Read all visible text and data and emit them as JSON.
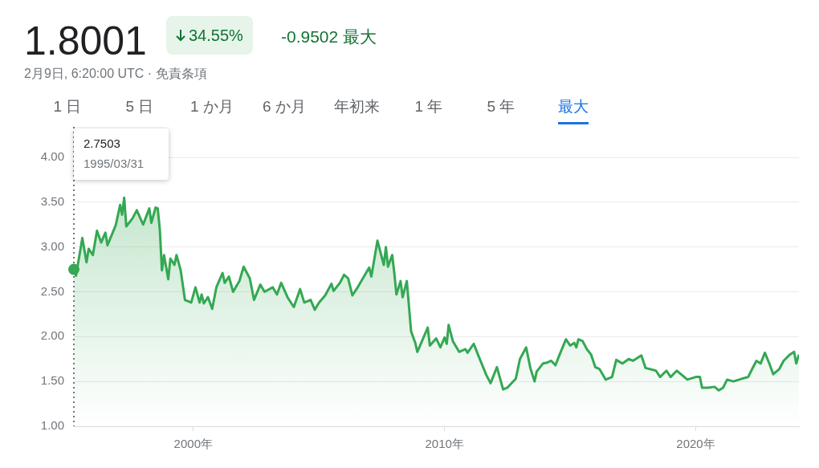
{
  "chart_data": {
    "type": "area",
    "title": "1.8001",
    "subtitle": "2月9日, 6:20:00 UTC · 免責条項",
    "x": [
      "1995-03-31",
      "1995-05",
      "1995-08",
      "1995-10",
      "1995-11",
      "1996-01",
      "1996-03",
      "1996-05",
      "1996-07",
      "1996-08",
      "1996-11",
      "1996-12",
      "1997-02",
      "1997-03",
      "1997-04",
      "1997-05",
      "1997-08",
      "1997-10",
      "1998-01",
      "1998-04",
      "1998-05",
      "1998-07",
      "1998-08",
      "1998-09",
      "1998-10",
      "1998-11",
      "1999-01",
      "1999-02",
      "1999-04",
      "1999-05",
      "1999-07",
      "1999-09",
      "1999-12",
      "2000-02",
      "2000-04",
      "2000-05",
      "2000-06",
      "2000-08",
      "2000-10",
      "2000-12",
      "2001-03",
      "2001-04",
      "2001-06",
      "2001-08",
      "2001-11",
      "2002-01",
      "2002-04",
      "2002-06",
      "2002-09",
      "2002-11",
      "2003-03",
      "2003-05",
      "2003-07",
      "2003-10",
      "2004-01",
      "2004-04",
      "2004-06",
      "2004-09",
      "2004-11",
      "2005-01",
      "2005-04",
      "2005-07",
      "2005-08",
      "2005-11",
      "2006-01",
      "2006-03",
      "2006-05",
      "2006-07",
      "2006-10",
      "2007-01",
      "2007-02",
      "2007-05",
      "2007-08",
      "2007-09",
      "2007-10",
      "2007-12",
      "2008-01",
      "2008-02",
      "2008-04",
      "2008-05",
      "2008-07",
      "2008-09",
      "2008-11",
      "2008-12",
      "2009-03",
      "2009-05",
      "2009-06",
      "2009-09",
      "2009-11",
      "2010-01",
      "2010-02",
      "2010-03",
      "2010-05",
      "2010-08",
      "2010-11",
      "2010-12",
      "2011-03",
      "2011-05",
      "2011-09",
      "2011-11",
      "2012-02",
      "2012-05",
      "2012-07",
      "2012-11",
      "2013-01",
      "2013-04",
      "2013-06",
      "2013-08",
      "2013-09",
      "2013-12",
      "2014-02",
      "2014-04",
      "2014-06",
      "2014-08",
      "2014-11",
      "2015-01",
      "2015-03",
      "2015-04",
      "2015-05",
      "2015-07",
      "2015-09",
      "2015-11",
      "2016-01",
      "2016-03",
      "2016-06",
      "2016-09",
      "2016-11",
      "2017-02",
      "2017-05",
      "2017-07",
      "2017-11",
      "2018-01",
      "2018-06",
      "2018-08",
      "2018-11",
      "2019-01",
      "2019-04",
      "2019-07",
      "2019-09",
      "2020-01",
      "2020-03",
      "2020-04",
      "2020-07",
      "2020-10",
      "2020-12",
      "2021-02",
      "2021-04",
      "2021-07",
      "2021-11",
      "2022-02",
      "2022-04",
      "2022-06",
      "2022-08",
      "2022-10",
      "2022-12",
      "2023-02",
      "2023-05",
      "2023-07",
      "2023-10",
      "2023-12",
      "2024-01",
      "2024-02-09"
    ],
    "values": [
      2.75,
      2.68,
      3.1,
      2.83,
      2.98,
      2.91,
      3.18,
      3.05,
      3.16,
      3.02,
      3.19,
      3.25,
      3.47,
      3.36,
      3.55,
      3.23,
      3.32,
      3.41,
      3.25,
      3.43,
      3.27,
      3.44,
      3.43,
      3.19,
      2.74,
      2.91,
      2.64,
      2.87,
      2.8,
      2.91,
      2.74,
      2.41,
      2.38,
      2.55,
      2.38,
      2.47,
      2.37,
      2.44,
      2.31,
      2.55,
      2.71,
      2.6,
      2.67,
      2.5,
      2.62,
      2.78,
      2.65,
      2.41,
      2.58,
      2.5,
      2.55,
      2.47,
      2.6,
      2.44,
      2.33,
      2.53,
      2.38,
      2.41,
      2.3,
      2.38,
      2.46,
      2.59,
      2.51,
      2.6,
      2.69,
      2.65,
      2.46,
      2.53,
      2.65,
      2.77,
      2.67,
      3.07,
      2.8,
      3.0,
      2.78,
      2.91,
      2.71,
      2.47,
      2.62,
      2.44,
      2.62,
      2.06,
      1.93,
      1.83,
      1.99,
      2.1,
      1.9,
      1.98,
      1.88,
      1.99,
      1.92,
      2.13,
      1.95,
      1.83,
      1.86,
      1.82,
      1.92,
      1.8,
      1.57,
      1.48,
      1.66,
      1.41,
      1.43,
      1.53,
      1.75,
      1.88,
      1.65,
      1.5,
      1.61,
      1.7,
      1.71,
      1.73,
      1.68,
      1.8,
      1.97,
      1.9,
      1.93,
      1.88,
      1.97,
      1.95,
      1.86,
      1.8,
      1.66,
      1.64,
      1.52,
      1.55,
      1.74,
      1.7,
      1.75,
      1.73,
      1.79,
      1.65,
      1.62,
      1.55,
      1.62,
      1.55,
      1.62,
      1.56,
      1.52,
      1.55,
      1.55,
      1.43,
      1.43,
      1.44,
      1.4,
      1.43,
      1.52,
      1.5,
      1.53,
      1.55,
      1.64,
      1.73,
      1.7,
      1.82,
      1.71,
      1.58,
      1.64,
      1.73,
      1.8,
      1.83,
      1.7,
      1.8
    ],
    "color": "#34a853",
    "xlim": [
      "1995-03-31",
      "2024-02-09"
    ],
    "xticks": [
      {
        "value": "2000",
        "label": "2000年"
      },
      {
        "value": "2010",
        "label": "2010年"
      },
      {
        "value": "2020",
        "label": "2020年"
      }
    ],
    "ylim": [
      1,
      4
    ],
    "yticks": [
      {
        "value": 1,
        "label": "1.00"
      },
      {
        "value": 1.5,
        "label": "1.50"
      },
      {
        "value": 2,
        "label": "2.00"
      },
      {
        "value": 2.5,
        "label": "2.50"
      },
      {
        "value": 3,
        "label": "3.00"
      },
      {
        "value": 3.5,
        "label": "3.50"
      },
      {
        "value": 4,
        "label": "4.00"
      }
    ],
    "grid": "y",
    "legend": false,
    "ref_lines": [
      {
        "axis": "x",
        "value": "1995-03-31",
        "line_style": "dotted",
        "color": "#70757a"
      }
    ],
    "annotations": [
      "34.55%",
      "-0.9502 最大",
      "1 日",
      "5 日",
      "1 か月",
      "6 か月",
      "年初来",
      "1 年",
      "5 年",
      "最大",
      "2.7503",
      "1995/03/31"
    ]
  }
}
